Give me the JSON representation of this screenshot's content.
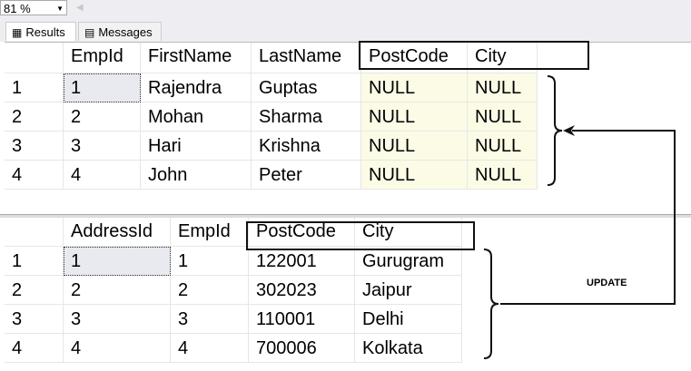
{
  "toolbar": {
    "zoom": "81 %"
  },
  "tabs": [
    {
      "label": "Results",
      "icon": "grid-icon"
    },
    {
      "label": "Messages",
      "icon": "messages-icon"
    }
  ],
  "grid1": {
    "columns": [
      "EmpId",
      "FirstName",
      "LastName",
      "PostCode",
      "City"
    ],
    "rows": [
      {
        "n": "1",
        "cells": [
          "1",
          "Rajendra",
          "Guptas",
          "NULL",
          "NULL"
        ]
      },
      {
        "n": "2",
        "cells": [
          "2",
          "Mohan",
          "Sharma",
          "NULL",
          "NULL"
        ]
      },
      {
        "n": "3",
        "cells": [
          "3",
          "Hari",
          "Krishna",
          "NULL",
          "NULL"
        ]
      },
      {
        "n": "4",
        "cells": [
          "4",
          "John",
          "Peter",
          "NULL",
          "NULL"
        ]
      }
    ]
  },
  "grid2": {
    "columns": [
      "AddressId",
      "EmpId",
      "PostCode",
      "City"
    ],
    "rows": [
      {
        "n": "1",
        "cells": [
          "1",
          "1",
          "122001",
          "Gurugram"
        ]
      },
      {
        "n": "2",
        "cells": [
          "2",
          "2",
          "302023",
          "Jaipur"
        ]
      },
      {
        "n": "3",
        "cells": [
          "3",
          "3",
          "110001",
          "Delhi"
        ]
      },
      {
        "n": "4",
        "cells": [
          "4",
          "4",
          "700006",
          "Kolkata"
        ]
      }
    ]
  },
  "annotation": {
    "label": "UPDATE"
  }
}
